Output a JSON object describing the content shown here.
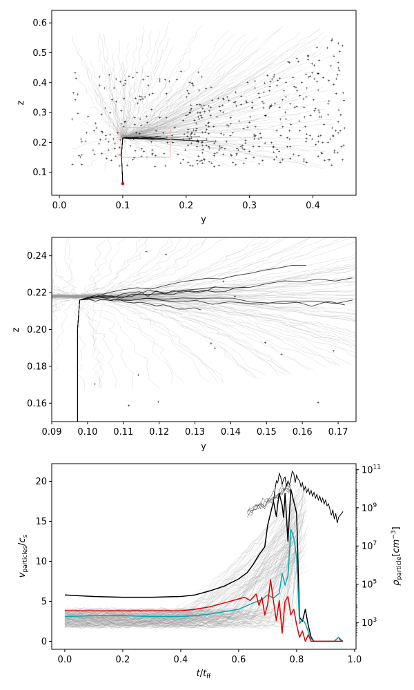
{
  "chart_data": [
    {
      "type": "scatter",
      "xlabel": "y",
      "ylabel": "z",
      "xlim": [
        -0.012,
        0.468
      ],
      "ylim": [
        0.023,
        0.642
      ],
      "xticks": [
        "0.0",
        "0.1",
        "0.2",
        "0.3",
        "0.4"
      ],
      "yticks": [
        "0.1",
        "0.2",
        "0.3",
        "0.4",
        "0.5",
        "0.6"
      ],
      "zoom_box": {
        "x": [
          0.097,
          0.175
        ],
        "y": [
          0.15,
          0.25
        ],
        "color": "#f2b5b5"
      },
      "start_point": {
        "x": 0.1,
        "y": 0.062,
        "color": "#dd0000"
      },
      "trajectory_color": "#9a9a9a",
      "main_track_color": "#000000",
      "marker_color": "#333333"
    },
    {
      "type": "line",
      "xlabel": "y",
      "ylabel": "z",
      "xlim": [
        0.09,
        0.175
      ],
      "ylim": [
        0.15,
        0.25
      ],
      "xticks": [
        "0.09",
        "0.10",
        "0.11",
        "0.12",
        "0.13",
        "0.14",
        "0.15",
        "0.16",
        "0.17"
      ],
      "yticks": [
        "0.16",
        "0.18",
        "0.20",
        "0.22",
        "0.24"
      ],
      "trajectory_color": "#9a9a9a",
      "main_track_color": "#000000"
    },
    {
      "type": "line",
      "xlabel": "t/t_ff",
      "ylabel": "v_particles/c_s",
      "ylabel_right": "ρ_particle[cm^-3]",
      "xlim": [
        -0.045,
        1.005
      ],
      "ylim": [
        -1.0,
        22.2
      ],
      "xticks": [
        "0.0",
        "0.2",
        "0.4",
        "0.6",
        "0.8",
        "1.0"
      ],
      "yticks": [
        "0",
        "5",
        "10",
        "15",
        "20"
      ],
      "y2ticks": [
        {
          "base": "10",
          "exp": "3"
        },
        {
          "base": "10",
          "exp": "5"
        },
        {
          "base": "10",
          "exp": "7"
        },
        {
          "base": "10",
          "exp": "9"
        },
        {
          "base": "10",
          "exp": "11"
        }
      ],
      "y2lim_log10": [
        1.6,
        11.3
      ],
      "series": [
        {
          "color": "#000000",
          "x": [
            0.0,
            0.1,
            0.2,
            0.3,
            0.4,
            0.45,
            0.5,
            0.55,
            0.6,
            0.63,
            0.65,
            0.67,
            0.69,
            0.7,
            0.71,
            0.72,
            0.73,
            0.735,
            0.74,
            0.75,
            0.755,
            0.76,
            0.77,
            0.78,
            0.79,
            0.8,
            0.81,
            0.82,
            0.83,
            0.84,
            0.85,
            0.86,
            0.87,
            0.9,
            0.93,
            0.945,
            0.95,
            0.96
          ],
          "y": [
            5.8,
            5.6,
            5.5,
            5.5,
            5.6,
            5.8,
            6.3,
            6.9,
            7.8,
            8.6,
            9.6,
            10.8,
            11.8,
            14.5,
            16.0,
            17.5,
            15.6,
            17.2,
            18.5,
            17.0,
            15.5,
            18.5,
            12.5,
            19.0,
            17.5,
            16.0,
            3.0,
            2.5,
            4.0,
            2.0,
            0.5,
            0.0,
            0.0,
            0.0,
            0.0,
            0.5,
            0.2,
            0.0
          ]
        },
        {
          "color": "#00aaaa",
          "x": [
            0.0,
            0.1,
            0.2,
            0.3,
            0.4,
            0.45,
            0.5,
            0.55,
            0.6,
            0.65,
            0.68,
            0.7,
            0.72,
            0.74,
            0.75,
            0.76,
            0.77,
            0.78,
            0.79,
            0.8,
            0.81,
            0.82,
            0.83,
            0.84,
            0.85,
            0.86,
            0.87,
            0.9,
            0.93,
            0.945,
            0.95,
            0.96
          ],
          "y": [
            3.1,
            3.2,
            3.2,
            3.1,
            3.1,
            3.2,
            3.4,
            3.7,
            4.0,
            4.8,
            5.2,
            5.8,
            5.4,
            6.0,
            8.5,
            7.0,
            8.2,
            14.0,
            13.0,
            10.5,
            2.2,
            2.8,
            2.2,
            1.2,
            0.3,
            0.0,
            0.0,
            0.0,
            0.0,
            0.5,
            0.3,
            0.0
          ]
        },
        {
          "color": "#dd0000",
          "x": [
            0.0,
            0.1,
            0.2,
            0.3,
            0.4,
            0.45,
            0.5,
            0.55,
            0.6,
            0.62,
            0.64,
            0.66,
            0.67,
            0.68,
            0.69,
            0.7,
            0.71,
            0.72,
            0.73,
            0.74,
            0.75,
            0.76,
            0.77,
            0.78,
            0.79,
            0.8,
            0.81,
            0.82,
            0.83,
            0.84,
            0.85,
            0.86,
            0.9,
            0.93,
            0.96
          ],
          "y": [
            3.8,
            3.8,
            3.8,
            3.8,
            3.8,
            4.0,
            4.3,
            4.8,
            5.3,
            5.5,
            5.1,
            5.9,
            4.5,
            5.5,
            3.3,
            4.6,
            7.7,
            5.0,
            2.6,
            5.1,
            1.0,
            5.0,
            5.6,
            3.3,
            4.0,
            2.1,
            0.5,
            1.3,
            0.0,
            0.8,
            0.0,
            0.0,
            0.0,
            0.0,
            0.0
          ]
        }
      ],
      "density_curves": [
        {
          "color": "#000000",
          "t": [
            0.72,
            0.725,
            0.73,
            0.735,
            0.74,
            0.745,
            0.75,
            0.755,
            0.76,
            0.765,
            0.77,
            0.775,
            0.78,
            0.785,
            0.79,
            0.795,
            0.8,
            0.805,
            0.81,
            0.815,
            0.82,
            0.825,
            0.83,
            0.835,
            0.84,
            0.845,
            0.85,
            0.855,
            0.86,
            0.865,
            0.87,
            0.875,
            0.88,
            0.885,
            0.89,
            0.895,
            0.9,
            0.905,
            0.91,
            0.915,
            0.92,
            0.925,
            0.93,
            0.935,
            0.94,
            0.945,
            0.95,
            0.955,
            0.96
          ],
          "log10_rho": [
            9.3,
            9.9,
            10.4,
            10.3,
            10.8,
            10.6,
            10.2,
            10.5,
            10.6,
            10.1,
            10.4,
            10.2,
            10.5,
            10.9,
            10.8,
            10.3,
            10.7,
            10.5,
            10.4,
            10.1,
            10.3,
            9.9,
            10.1,
            9.8,
            10.0,
            9.7,
            9.9,
            9.6,
            9.8,
            9.5,
            9.7,
            9.4,
            9.6,
            9.3,
            9.5,
            9.2,
            9.4,
            9.1,
            9.2,
            8.9,
            8.6,
            8.9,
            8.4,
            8.7,
            8.2,
            8.5,
            8.6,
            8.7,
            8.8
          ]
        }
      ]
    }
  ]
}
